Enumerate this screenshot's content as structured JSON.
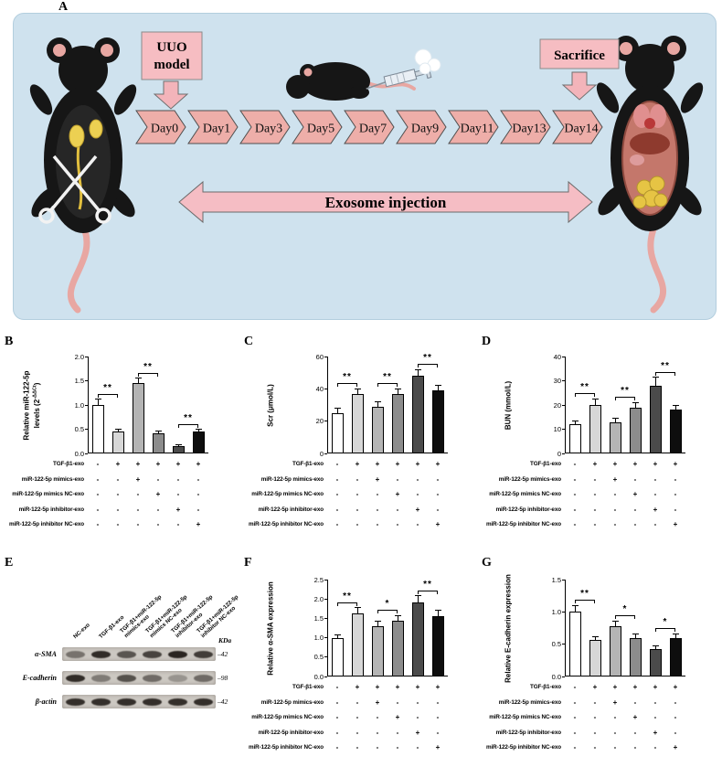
{
  "colors": {
    "panel_bg": "#cfe2ee",
    "pink_box": "#f6bdc2",
    "pink_arrow": "#f3b4ba",
    "chevron": "#eeaea9",
    "bar_fills": [
      "#ffffff",
      "#d7d7d7",
      "#b4b4b4",
      "#8c8c8c",
      "#4b4b4b",
      "#0e0e0e"
    ],
    "axis": "#000000"
  },
  "panelA": {
    "label": "A",
    "uuo_box_lines": [
      "UUO",
      "model"
    ],
    "sacrifice_box_label": "Sacrifice",
    "timeline_days": [
      "Day0",
      "Day1",
      "Day3",
      "Day5",
      "Day7",
      "Day9",
      "Day11",
      "Day13",
      "Day14"
    ],
    "exosome_arrow_label": "Exosome injection"
  },
  "treatments": {
    "rows": [
      {
        "label": "TGF-β1-exo",
        "values": [
          "-",
          "+",
          "+",
          "+",
          "+",
          "+"
        ]
      },
      {
        "label": "miR-122-5p mimics-exo",
        "values": [
          "-",
          "-",
          "+",
          "-",
          "-",
          "-"
        ]
      },
      {
        "label": "miR-122-5p mimics NC-exo",
        "values": [
          "-",
          "-",
          "-",
          "+",
          "-",
          "-"
        ]
      },
      {
        "label": "miR-122-5p inhibitor-exo",
        "values": [
          "-",
          "-",
          "-",
          "-",
          "+",
          "-"
        ]
      },
      {
        "label": "miR-122-5p inhibitor NC-exo",
        "values": [
          "-",
          "-",
          "-",
          "-",
          "-",
          "+"
        ]
      }
    ]
  },
  "chart_data": [
    {
      "id": "B",
      "panel_label": "B",
      "type": "bar",
      "ylabel": "Relative miR-122-5p levels (2^-ΔΔCt)",
      "ylabel_lines": [
        [
          {
            "t": "Relative miR-122-5p"
          }
        ],
        [
          {
            "t": "levels (2"
          },
          {
            "t": "-ΔΔCt",
            "sup": true
          },
          {
            "t": ")"
          }
        ]
      ],
      "ylim": [
        0,
        2.0
      ],
      "yticks": [
        "0.0",
        "0.5",
        "1.0",
        "1.5",
        "2.0"
      ],
      "values": [
        1.0,
        0.45,
        1.45,
        0.42,
        0.15,
        0.45
      ],
      "errors": [
        0.12,
        0.05,
        0.1,
        0.05,
        0.03,
        0.05
      ],
      "significance": [
        {
          "between": [
            0,
            1
          ],
          "label": "**"
        },
        {
          "between": [
            2,
            3
          ],
          "label": "**"
        },
        {
          "between": [
            4,
            5
          ],
          "label": "**"
        }
      ]
    },
    {
      "id": "C",
      "panel_label": "C",
      "type": "bar",
      "ylabel": "Scr (μmol/L)",
      "ylabel_lines": [
        [
          {
            "t": "Scr (μmol/L)"
          }
        ]
      ],
      "ylim": [
        0,
        60
      ],
      "yticks": [
        "0",
        "20",
        "40",
        "60"
      ],
      "values": [
        25,
        37,
        29,
        37,
        48,
        39
      ],
      "errors": [
        3,
        3,
        3,
        3,
        4,
        3
      ],
      "significance": [
        {
          "between": [
            0,
            1
          ],
          "label": "**"
        },
        {
          "between": [
            2,
            3
          ],
          "label": "**"
        },
        {
          "between": [
            4,
            5
          ],
          "label": "**"
        }
      ]
    },
    {
      "id": "D",
      "panel_label": "D",
      "type": "bar",
      "ylabel": "BUN (mmol/L)",
      "ylabel_lines": [
        [
          {
            "t": "BUN (mmol/L)"
          }
        ]
      ],
      "ylim": [
        0,
        40
      ],
      "yticks": [
        "0",
        "10",
        "20",
        "30",
        "40"
      ],
      "values": [
        12,
        20,
        13,
        19,
        28,
        18
      ],
      "errors": [
        1.5,
        2.5,
        1.5,
        2,
        3.5,
        2
      ],
      "significance": [
        {
          "between": [
            0,
            1
          ],
          "label": "**"
        },
        {
          "between": [
            2,
            3
          ],
          "label": "**"
        },
        {
          "between": [
            4,
            5
          ],
          "label": "**"
        }
      ]
    },
    {
      "id": "F",
      "panel_label": "F",
      "type": "bar",
      "ylabel": "Relative α-SMA expression",
      "ylabel_lines": [
        [
          {
            "t": "Relative α-SMA expression"
          }
        ]
      ],
      "ylim": [
        0,
        2.5
      ],
      "yticks": [
        "0.0",
        "0.5",
        "1.0",
        "1.5",
        "2.0",
        "2.5"
      ],
      "values": [
        1.0,
        1.62,
        1.3,
        1.45,
        1.9,
        1.55
      ],
      "errors": [
        0.08,
        0.15,
        0.12,
        0.12,
        0.18,
        0.15
      ],
      "significance": [
        {
          "between": [
            0,
            1
          ],
          "label": "**"
        },
        {
          "between": [
            2,
            3
          ],
          "label": "*"
        },
        {
          "between": [
            4,
            5
          ],
          "label": "**"
        }
      ]
    },
    {
      "id": "G",
      "panel_label": "G",
      "type": "bar",
      "ylabel": "Relative E-cadherin expression",
      "ylabel_lines": [
        [
          {
            "t": "Relative E-cadherin expression"
          }
        ]
      ],
      "ylim": [
        0,
        1.5
      ],
      "yticks": [
        "0.0",
        "0.5",
        "1.0",
        "1.5"
      ],
      "values": [
        1.0,
        0.57,
        0.78,
        0.6,
        0.42,
        0.6
      ],
      "errors": [
        0.1,
        0.05,
        0.08,
        0.06,
        0.05,
        0.06
      ],
      "significance": [
        {
          "between": [
            0,
            1
          ],
          "label": "**"
        },
        {
          "between": [
            2,
            3
          ],
          "label": "*"
        },
        {
          "between": [
            4,
            5
          ],
          "label": "*"
        }
      ]
    }
  ],
  "blot": {
    "panel_label": "E",
    "kda_header": "KDa",
    "lane_labels": [
      "NC-exo",
      "TGF-β1-exo",
      "TGF-β1+miR-122-5p\nmimics-exo",
      "TGF-β1+miR-122-5p\nmimics NC-exo",
      "TGF-β1+miR-122-5p\ninhibitor-exo",
      "TGF-β1+miR-122-5p\ninhibitor NC-exo"
    ],
    "rows": [
      {
        "label": "α-SMA",
        "kda": "–42",
        "band_intensities": [
          0.5,
          0.92,
          0.68,
          0.78,
          0.96,
          0.82
        ]
      },
      {
        "label": "E-cadherin",
        "kda": "–98",
        "band_intensities": [
          0.92,
          0.45,
          0.7,
          0.55,
          0.3,
          0.55
        ]
      },
      {
        "label": "β-actin",
        "kda": "–42",
        "band_intensities": [
          0.9,
          0.9,
          0.9,
          0.9,
          0.9,
          0.9
        ]
      }
    ]
  }
}
